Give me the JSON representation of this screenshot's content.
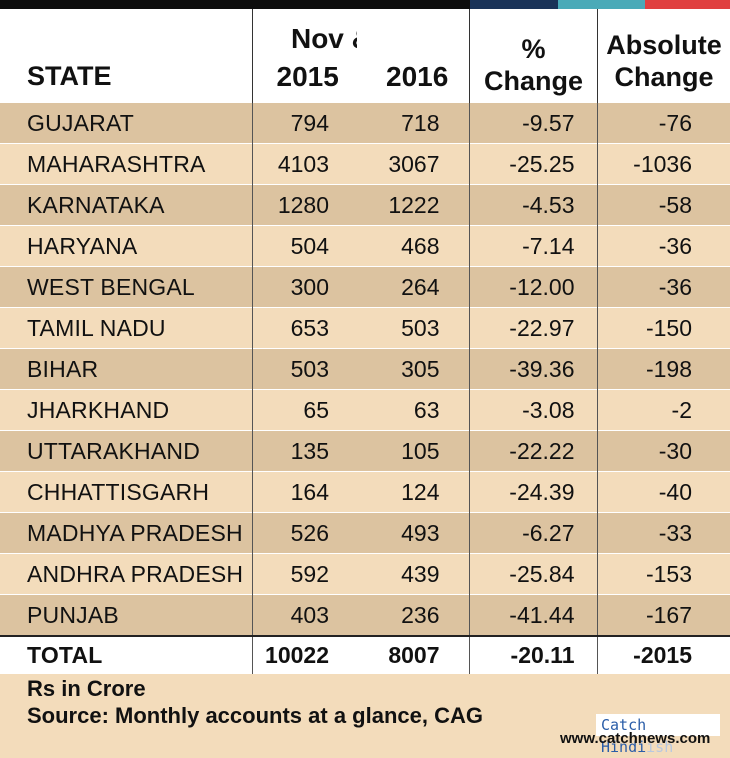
{
  "colors": {
    "bar1": "#0d0d0d",
    "bar2": "#1a3358",
    "bar3": "#4aaab8",
    "bar4": "#e04040"
  },
  "header": {
    "state": "STATE",
    "period": "Nov & Dec",
    "year1": "2015",
    "year2": "2016",
    "pct_line1": "%",
    "pct_line2": "Change",
    "abs_line1": "Absolute",
    "abs_line2": "Change"
  },
  "chart_data": {
    "type": "table",
    "columns": [
      "STATE",
      "2015",
      "2016",
      "% Change",
      "Absolute Change"
    ],
    "rows": [
      {
        "state": "GUJARAT",
        "y2015": "794",
        "y2016": "718",
        "pct": "-9.57",
        "abs": "-76"
      },
      {
        "state": "MAHARASHTRA",
        "y2015": "4103",
        "y2016": "3067",
        "pct": "-25.25",
        "abs": "-1036"
      },
      {
        "state": "KARNATAKA",
        "y2015": "1280",
        "y2016": "1222",
        "pct": "-4.53",
        "abs": "-58"
      },
      {
        "state": "HARYANA",
        "y2015": "504",
        "y2016": "468",
        "pct": "-7.14",
        "abs": "-36"
      },
      {
        "state": "WEST BENGAL",
        "y2015": "300",
        "y2016": "264",
        "pct": "-12.00",
        "abs": "-36"
      },
      {
        "state": "TAMIL NADU",
        "y2015": "653",
        "y2016": "503",
        "pct": "-22.97",
        "abs": "-150"
      },
      {
        "state": "BIHAR",
        "y2015": "503",
        "y2016": "305",
        "pct": "-39.36",
        "abs": "-198"
      },
      {
        "state": "JHARKHAND",
        "y2015": "65",
        "y2016": "63",
        "pct": "-3.08",
        "abs": "-2"
      },
      {
        "state": "UTTARAKHAND",
        "y2015": "135",
        "y2016": "105",
        "pct": "-22.22",
        "abs": "-30"
      },
      {
        "state": "CHHATTISGARH",
        "y2015": "164",
        "y2016": "124",
        "pct": "-24.39",
        "abs": "-40"
      },
      {
        "state": "MADHYA PRADESH",
        "y2015": "526",
        "y2016": "493",
        "pct": "-6.27",
        "abs": "-33"
      },
      {
        "state": "ANDHRA PRADESH",
        "y2015": "592",
        "y2016": "439",
        "pct": "-25.84",
        "abs": "-153"
      },
      {
        "state": "PUNJAB",
        "y2015": "403",
        "y2016": "236",
        "pct": "-41.44",
        "abs": "-167"
      }
    ],
    "total": {
      "state": "TOTAL",
      "y2015": "10022",
      "y2016": "8007",
      "pct": "-20.11",
      "abs": "-2015"
    }
  },
  "footer": {
    "unit": "Rs in Crore",
    "source": "Source: Monthly accounts at a glance, CAG"
  },
  "watermark": {
    "brand": "Catch Hindi",
    "brand_faded": "ish",
    "site": "www.catchnews.com"
  }
}
